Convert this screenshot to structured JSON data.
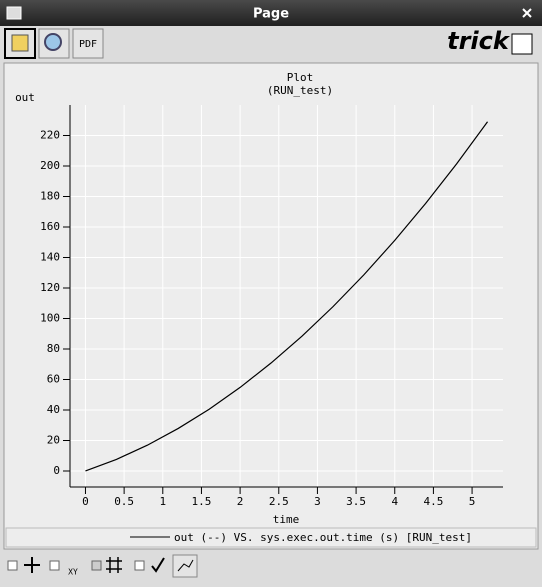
{
  "window": {
    "title": "Page"
  },
  "toolbar": {
    "pdf": "PDF",
    "logo": "trick"
  },
  "bottom_toolbar": {
    "xy": "XY"
  },
  "chart_data": {
    "type": "line",
    "title": "Plot",
    "subtitle": "(RUN_test)",
    "x_label": "time",
    "y_label": "out",
    "x": [
      0,
      0.4,
      0.8,
      1.2,
      1.6,
      2.0,
      2.4,
      2.8,
      3.2,
      3.6,
      4.0,
      4.4,
      4.8,
      5.2
    ],
    "series": [
      {
        "name": "out (--) VS. sys.exec.out.time (s) [RUN_test]",
        "color": "#000000",
        "values": [
          0,
          7.6,
          16.9,
          27.9,
          40.5,
          54.8,
          70.8,
          88.4,
          107.7,
          128.6,
          151.2,
          175.5,
          201.4,
          229.0
        ]
      }
    ],
    "xlim": [
      -0.2,
      5.4
    ],
    "xticks": [
      0,
      0.5,
      1,
      1.5,
      2,
      2.5,
      3,
      3.5,
      4,
      4.5,
      5
    ],
    "ylim": [
      -10.5,
      240
    ],
    "yticks": [
      0,
      20,
      40,
      60,
      80,
      100,
      120,
      140,
      160,
      180,
      200,
      220
    ],
    "grid": true
  }
}
